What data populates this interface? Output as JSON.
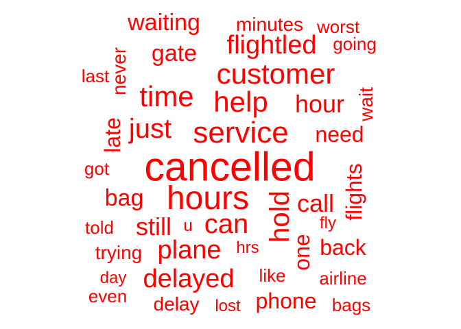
{
  "color": "#ff0000",
  "words": [
    "cancelled",
    "hours",
    "service",
    "customer",
    "help",
    "time",
    "just",
    "flightled",
    "can",
    "hold",
    "plane",
    "delayed",
    "hour",
    "call",
    "still",
    "waiting",
    "gate",
    "need",
    "phone",
    "bag",
    "flights",
    "late",
    "back",
    "one",
    "airline",
    "minutes",
    "delay",
    "worst",
    "going",
    "never",
    "wait",
    "trying",
    "got",
    "last",
    "told",
    "like",
    "fly",
    "bags",
    "even",
    "lost",
    "day",
    "hrs",
    "u"
  ]
}
